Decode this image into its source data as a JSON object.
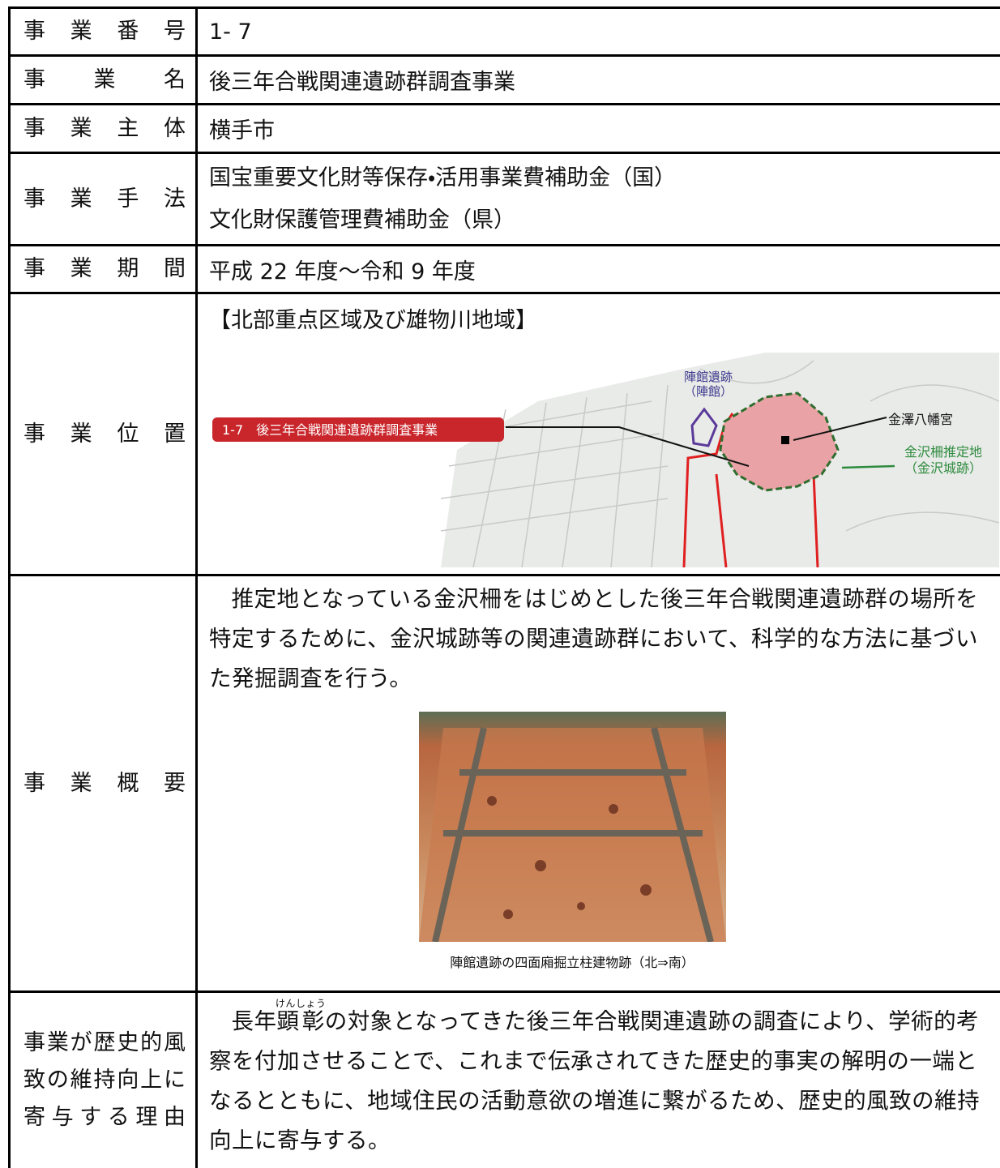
{
  "rows": [
    {
      "label": "事業番号",
      "value": "1- 7"
    },
    {
      "label": "事業名",
      "value": "後三年合戦関連遺跡群調査事業"
    },
    {
      "label": "事業主体",
      "value": "横手市"
    },
    {
      "label": "事業手法",
      "lines": [
        "国宝重要文化財等保存・活用事業費補助金（国）",
        "文化財保護管理費補助金（県）"
      ]
    },
    {
      "label": "事業期間",
      "value": "平成 22 年度～令和 9 年度"
    },
    {
      "label": "事業位置",
      "heading": "【北部重点区域及び雄物川地域】",
      "map": {
        "project_label": "1-7　後三年合戦関連遺跡群調査事業",
        "site_label": [
          "陣館遺跡",
          "（陣館）"
        ],
        "shrine_label": "金澤八幡宮",
        "castle_label": [
          "金沢柵推定地",
          "（金沢城跡）"
        ]
      }
    },
    {
      "label": "事業概要",
      "text": "推定地となっている金沢柵をはじめとした後三年合戦関連遺跡群の場所を特定するために、金沢城跡等の関連遺跡群において、科学的な方法に基づいた発掘調査を行う。",
      "caption": "陣館遺跡の四面廂掘立柱建物跡（北⇒南）"
    },
    {
      "label": "事業が歴史的風致の維持向上に寄与する理由",
      "text_before": "長年",
      "ruby_base": "顕彰",
      "ruby_text": "けんしょう",
      "text_after": "の対象となってきた後三年合戦関連遺跡の調査により、学術的考察を付加させることで、これまで伝承されてきた歴史的事実の解明の一端となるとともに、地域住民の活動意欲の増進に繋がるため、歴史的風致の維持向上に寄与する。"
    }
  ]
}
